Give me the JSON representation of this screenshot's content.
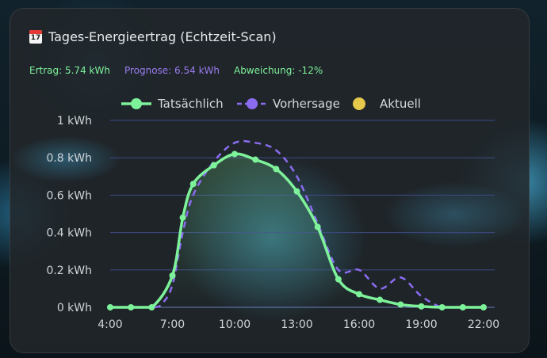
{
  "card": {
    "title": "Tages-Energieertrag (Echtzeit-Scan)",
    "title_icon": "calendar-icon",
    "stats": {
      "ertrag": "Ertrag: 5.74 kWh",
      "prognose": "Prognose: 6.54 kWh",
      "abweichung": "Abweichung: -12%"
    }
  },
  "colors": {
    "actual": "#7ef29a",
    "forecast": "#8b6cf0",
    "current": "#e6c84a"
  },
  "chart_data": {
    "type": "line",
    "legend": [
      "Tatsächlich",
      "Vorhersage",
      "Aktuell"
    ],
    "legend_position": "top",
    "x_range": [
      4,
      22
    ],
    "x_ticks": [
      "4:00",
      "7:00",
      "10:00",
      "13:00",
      "16:00",
      "19:00",
      "22:00"
    ],
    "y_ticks": [
      "0 kWh",
      "0.2 kWh",
      "0.4 kWh",
      "0.6 kWh",
      "0.8 kWh",
      "1 kWh"
    ],
    "ylim": [
      0,
      1
    ],
    "grid": true,
    "series": [
      {
        "name": "Tatsächlich",
        "x": [
          4,
          5,
          6,
          7,
          7.5,
          8,
          9,
          10,
          11,
          12,
          13,
          14,
          15,
          16,
          17,
          18,
          19,
          20,
          21,
          22
        ],
        "y": [
          0,
          0,
          0,
          0.17,
          0.48,
          0.66,
          0.76,
          0.82,
          0.79,
          0.74,
          0.62,
          0.43,
          0.15,
          0.07,
          0.04,
          0.015,
          0.005,
          0,
          0,
          0
        ]
      },
      {
        "name": "Vorhersage",
        "x": [
          4,
          6,
          6.5,
          7,
          7.5,
          8,
          9,
          10,
          11,
          12,
          13,
          14,
          15,
          16,
          17,
          18,
          19,
          20,
          21,
          22
        ],
        "y": [
          0,
          0,
          0.02,
          0.12,
          0.4,
          0.6,
          0.78,
          0.88,
          0.88,
          0.84,
          0.7,
          0.45,
          0.2,
          0.2,
          0.1,
          0.16,
          0.06,
          0,
          0,
          0
        ]
      },
      {
        "name": "Aktuell",
        "x": [],
        "y": []
      }
    ]
  }
}
